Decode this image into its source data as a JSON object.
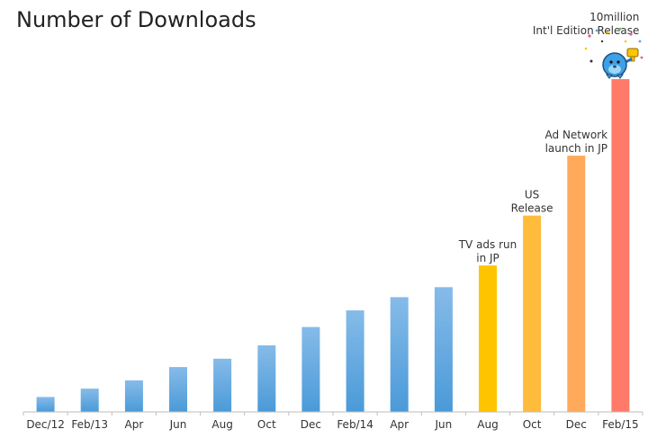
{
  "chart_data": {
    "type": "bar",
    "title": "Number of Downloads",
    "xlabel": "",
    "ylabel": "",
    "categories": [
      "Dec/12",
      "Feb/13",
      "Apr",
      "Jun",
      "Aug",
      "Oct",
      "Dec",
      "Feb/14",
      "Apr",
      "Jun",
      "Aug",
      "Oct",
      "Dec",
      "Feb/15"
    ],
    "values": [
      0.45,
      0.7,
      0.95,
      1.35,
      1.6,
      2.0,
      2.55,
      3.05,
      3.45,
      3.75,
      4.4,
      5.9,
      7.7,
      10.0
    ],
    "ylim": [
      0,
      10
    ],
    "grid": false,
    "legend": "none",
    "bar_colors": [
      "#5aa7e3",
      "#5aa7e3",
      "#5aa7e3",
      "#5aa7e3",
      "#5aa7e3",
      "#5aa7e3",
      "#5aa7e3",
      "#5aa7e3",
      "#5aa7e3",
      "#5aa7e3",
      "#ffc400",
      "#ffbb3c",
      "#ffa95a",
      "#ff7a68"
    ],
    "annotations": [
      {
        "index": 10,
        "lines": [
          "TV ads run",
          "in JP"
        ]
      },
      {
        "index": 11,
        "lines": [
          "US",
          "Release"
        ]
      },
      {
        "index": 12,
        "lines": [
          "Ad Network",
          "launch in JP"
        ]
      },
      {
        "index": 13,
        "lines": [
          "10million",
          "Int'l Edition Release"
        ]
      }
    ],
    "mascot_icon": "trophy-mascot-icon"
  }
}
